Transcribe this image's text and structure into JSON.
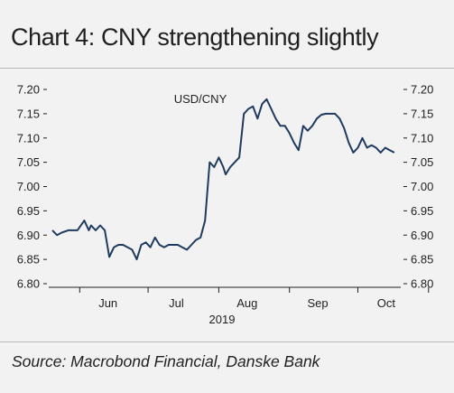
{
  "title": "Chart 4: CNY strengthening slightly",
  "source": "Source: Macrobond Financial, Danske Bank",
  "colors": {
    "line": "#1f3a5f",
    "background": "#f2f2f2",
    "text": "#1f1f1f",
    "rule": "#b8b8b8"
  },
  "chart_data": {
    "type": "line",
    "title": "Chart 4: CNY strengthening slightly",
    "xlabel": "2019",
    "ylabel": "",
    "ylim": [
      6.8,
      7.2
    ],
    "y_ticks": [
      "7.20",
      "7.15",
      "7.10",
      "7.05",
      "7.00",
      "6.95",
      "6.90",
      "6.85",
      "6.80"
    ],
    "x_ticks": [
      "Jun",
      "Jul",
      "Aug",
      "Sep",
      "Oct"
    ],
    "year_label": "2019",
    "grid": false,
    "legend": "top-center",
    "series": [
      {
        "name": "USD/CNY",
        "x": [
          "2019-05-20",
          "2019-05-22",
          "2019-05-24",
          "2019-05-27",
          "2019-05-29",
          "2019-05-31",
          "2019-06-03",
          "2019-06-05",
          "2019-06-06",
          "2019-06-08",
          "2019-06-10",
          "2019-06-12",
          "2019-06-14",
          "2019-06-16",
          "2019-06-18",
          "2019-06-20",
          "2019-06-22",
          "2019-06-24",
          "2019-06-26",
          "2019-06-28",
          "2019-06-30",
          "2019-07-02",
          "2019-07-04",
          "2019-07-06",
          "2019-07-08",
          "2019-07-10",
          "2019-07-12",
          "2019-07-14",
          "2019-07-16",
          "2019-07-18",
          "2019-07-20",
          "2019-07-22",
          "2019-07-24",
          "2019-07-26",
          "2019-07-28",
          "2019-07-30",
          "2019-08-01",
          "2019-08-02",
          "2019-08-03",
          "2019-08-04",
          "2019-08-06",
          "2019-08-08",
          "2019-08-10",
          "2019-08-12",
          "2019-08-14",
          "2019-08-16",
          "2019-08-18",
          "2019-08-20",
          "2019-08-22",
          "2019-08-24",
          "2019-08-26",
          "2019-08-28",
          "2019-08-30",
          "2019-09-01",
          "2019-09-03",
          "2019-09-05",
          "2019-09-07",
          "2019-09-09",
          "2019-09-11",
          "2019-09-13",
          "2019-09-15",
          "2019-09-17",
          "2019-09-19",
          "2019-09-21",
          "2019-09-23",
          "2019-09-25",
          "2019-09-27",
          "2019-09-29",
          "2019-10-01",
          "2019-10-03",
          "2019-10-05",
          "2019-10-07",
          "2019-10-09",
          "2019-10-11",
          "2019-10-13",
          "2019-10-15",
          "2019-10-17"
        ],
        "values": [
          6.91,
          6.9,
          6.905,
          6.91,
          6.91,
          6.91,
          6.93,
          6.91,
          6.92,
          6.91,
          6.92,
          6.91,
          6.855,
          6.875,
          6.88,
          6.88,
          6.875,
          6.87,
          6.85,
          6.88,
          6.885,
          6.875,
          6.895,
          6.88,
          6.875,
          6.88,
          6.88,
          6.88,
          6.875,
          6.87,
          6.88,
          6.89,
          6.895,
          6.93,
          7.05,
          7.04,
          7.06,
          7.05,
          7.04,
          7.025,
          7.04,
          7.05,
          7.06,
          7.15,
          7.16,
          7.165,
          7.14,
          7.17,
          7.18,
          7.16,
          7.14,
          7.125,
          7.125,
          7.11,
          7.09,
          7.075,
          7.125,
          7.115,
          7.125,
          7.14,
          7.148,
          7.15,
          7.15,
          7.15,
          7.14,
          7.12,
          7.09,
          7.07,
          7.08,
          7.1,
          7.08,
          7.085,
          7.08,
          7.07,
          7.08,
          7.075,
          7.07
        ]
      }
    ]
  }
}
